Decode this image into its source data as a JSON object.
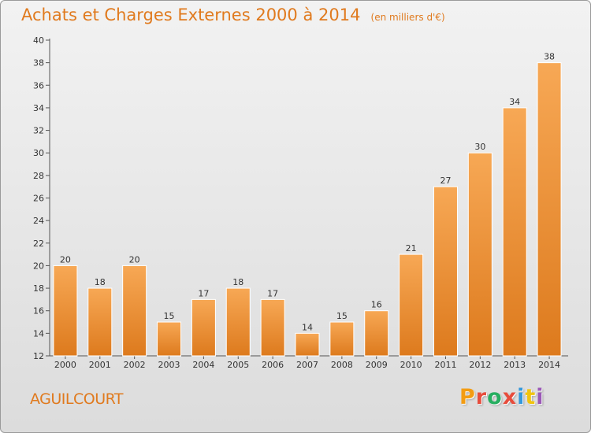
{
  "header": {
    "title": "Achats et Charges Externes 2000 à 2014",
    "unit": "(en milliers d'€)"
  },
  "footer": {
    "commune": "AGUILCOURT",
    "brand": "Proxiti",
    "brand_colors": [
      "#f39c12",
      "#e74c3c",
      "#27ae60",
      "#e74c3c",
      "#3498db",
      "#f1c40f",
      "#9b59b6"
    ]
  },
  "colors": {
    "bar_light": "#f7a855",
    "bar_dark": "#dd7a1d",
    "title": "#e07a1e"
  },
  "chart_data": {
    "type": "bar",
    "title": "Achats et Charges Externes 2000 à 2014",
    "subtitle": "(en milliers d'€)",
    "categories": [
      "2000",
      "2001",
      "2002",
      "2003",
      "2004",
      "2005",
      "2006",
      "2007",
      "2008",
      "2009",
      "2010",
      "2011",
      "2012",
      "2013",
      "2014"
    ],
    "values": [
      20,
      18,
      20,
      15,
      17,
      18,
      17,
      14,
      15,
      16,
      21,
      27,
      30,
      34,
      38
    ],
    "ylim": [
      12,
      40
    ],
    "yticks": [
      12,
      14,
      16,
      18,
      20,
      22,
      24,
      26,
      28,
      30,
      32,
      34,
      36,
      38,
      40
    ],
    "grid": false,
    "data_labels": true
  }
}
